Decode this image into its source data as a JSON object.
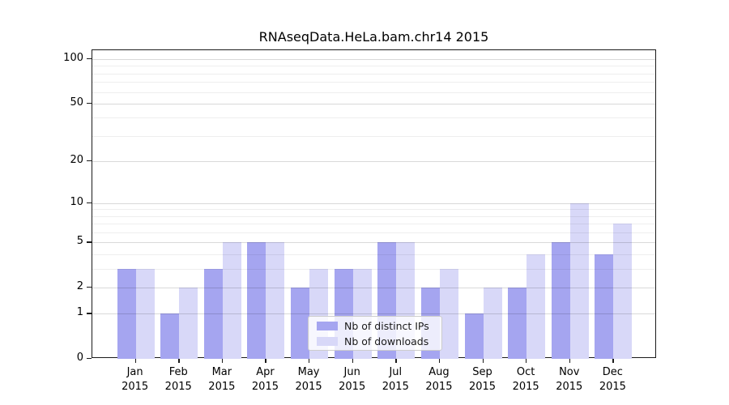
{
  "chart_data": {
    "type": "bar",
    "title": "RNAseqData.HeLa.bam.chr14 2015",
    "xlabel": "",
    "ylabel": "",
    "categories": [
      "Jan 2015",
      "Feb 2015",
      "Mar 2015",
      "Apr 2015",
      "May 2015",
      "Jun 2015",
      "Jul 2015",
      "Aug 2015",
      "Sep 2015",
      "Oct 2015",
      "Nov 2015",
      "Dec 2015"
    ],
    "series": [
      {
        "name": "Nb of distinct IPs",
        "color": "#a5a5f0",
        "values": [
          3,
          1,
          3,
          5,
          2,
          3,
          5,
          2,
          1,
          2,
          5,
          4
        ]
      },
      {
        "name": "Nb of downloads",
        "color": "#d8d8f8",
        "values": [
          3,
          2,
          5,
          5,
          3,
          3,
          5,
          3,
          2,
          4,
          10,
          7
        ]
      }
    ],
    "yscale": "log1p",
    "ylim": [
      0,
      115
    ],
    "y_major_ticks": [
      0,
      1,
      2,
      5,
      10,
      20,
      50,
      100
    ],
    "y_minor_gridlines": [
      3,
      4,
      6,
      7,
      8,
      9,
      30,
      40,
      60,
      70,
      80,
      90
    ],
    "grid": "horizontal",
    "legend_position": "lower center"
  },
  "colors": {
    "spine": "#1a1a1a",
    "legend_border": "#cccccc"
  }
}
